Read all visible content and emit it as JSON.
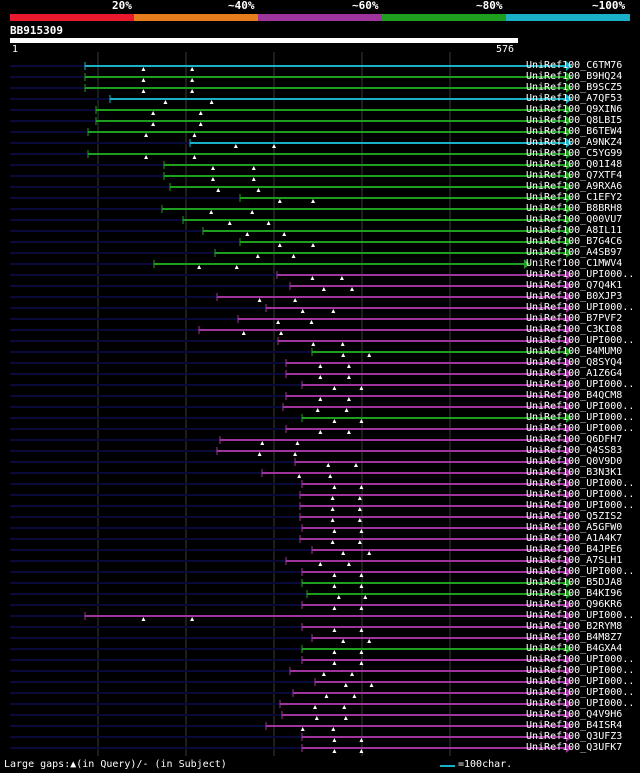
{
  "colors": {
    "bands": [
      "#e8192c",
      "#e87d1e",
      "#a0349e",
      "#1e9e1e",
      "#1ab0c8"
    ],
    "background": "#000000",
    "faint": "#0a0a3a",
    "grid": "#3a3a3a"
  },
  "header": {
    "percent_labels": [
      "20%",
      "~40%",
      "~60%",
      "~80%",
      "~100%"
    ],
    "query_id": "BB915309",
    "scale_start": "1",
    "scale_end": "576"
  },
  "hits": [
    {
      "name": "UniRef100_C6TM76",
      "band": 4,
      "start": 85,
      "end": 572
    },
    {
      "name": "UniRef100_B9HQ24",
      "band": 3,
      "start": 85,
      "end": 572
    },
    {
      "name": "UniRef100_B9SCZ5",
      "band": 3,
      "start": 85,
      "end": 572
    },
    {
      "name": "UniRef100_A7QF53",
      "band": 4,
      "start": 110,
      "end": 572
    },
    {
      "name": "UniRef100_Q9XIN6",
      "band": 3,
      "start": 96,
      "end": 572
    },
    {
      "name": "UniRef100_Q8LBI5",
      "band": 3,
      "start": 96,
      "end": 572
    },
    {
      "name": "UniRef100_B6TEW4",
      "band": 3,
      "start": 88,
      "end": 572
    },
    {
      "name": "UniRef100_A9NKZ4",
      "band": 4,
      "start": 190,
      "end": 572
    },
    {
      "name": "UniRef100_C5YG99",
      "band": 3,
      "start": 88,
      "end": 572
    },
    {
      "name": "UniRef100_Q01I48",
      "band": 3,
      "start": 164,
      "end": 572
    },
    {
      "name": "UniRef100_Q7XTF4",
      "band": 3,
      "start": 164,
      "end": 572
    },
    {
      "name": "UniRef100_A9RXA6",
      "band": 3,
      "start": 170,
      "end": 572
    },
    {
      "name": "UniRef100_C1EFY2",
      "band": 3,
      "start": 240,
      "end": 572
    },
    {
      "name": "UniRef100_B8BRH8",
      "band": 3,
      "start": 162,
      "end": 572
    },
    {
      "name": "UniRef100_Q00VU7",
      "band": 3,
      "start": 183,
      "end": 572
    },
    {
      "name": "UniRef100_A8IL11",
      "band": 3,
      "start": 203,
      "end": 572
    },
    {
      "name": "UniRef100_B7G4C6",
      "band": 3,
      "start": 240,
      "end": 572
    },
    {
      "name": "UniRef100_A4SB97",
      "band": 3,
      "start": 215,
      "end": 572
    },
    {
      "name": "UniRef100_C1MWV4",
      "band": 3,
      "start": 154,
      "end": 530
    },
    {
      "name": "UniRef100_UPI000..",
      "band": 2,
      "start": 277,
      "end": 572
    },
    {
      "name": "UniRef100_Q7Q4K1",
      "band": 2,
      "start": 290,
      "end": 572
    },
    {
      "name": "UniRef100_B0XJP3",
      "band": 2,
      "start": 217,
      "end": 572
    },
    {
      "name": "UniRef100_UPI000..",
      "band": 2,
      "start": 266,
      "end": 572
    },
    {
      "name": "UniRef100_B7PVF2",
      "band": 2,
      "start": 238,
      "end": 572
    },
    {
      "name": "UniRef100_C3KI08",
      "band": 2,
      "start": 199,
      "end": 572
    },
    {
      "name": "UniRef100_UPI000..",
      "band": 2,
      "start": 278,
      "end": 572
    },
    {
      "name": "UniRef100_B4MUM0",
      "band": 3,
      "start": 312,
      "end": 572
    },
    {
      "name": "UniRef100_Q8SYQ4",
      "band": 2,
      "start": 286,
      "end": 572
    },
    {
      "name": "UniRef100_A1Z6G4",
      "band": 2,
      "start": 286,
      "end": 572
    },
    {
      "name": "UniRef100_UPI000..",
      "band": 2,
      "start": 302,
      "end": 572
    },
    {
      "name": "UniRef100_B4QCM8",
      "band": 2,
      "start": 286,
      "end": 572
    },
    {
      "name": "UniRef100_UPI000..",
      "band": 2,
      "start": 283,
      "end": 572
    },
    {
      "name": "UniRef100_UPI000..",
      "band": 3,
      "start": 302,
      "end": 572
    },
    {
      "name": "UniRef100_UPI000..",
      "band": 2,
      "start": 286,
      "end": 572
    },
    {
      "name": "UniRef100_Q6DFH7",
      "band": 2,
      "start": 220,
      "end": 572
    },
    {
      "name": "UniRef100_Q4SS83",
      "band": 2,
      "start": 217,
      "end": 572
    },
    {
      "name": "UniRef100_Q0V9D0",
      "band": 2,
      "start": 295,
      "end": 572
    },
    {
      "name": "UniRef100_B3N3K1",
      "band": 2,
      "start": 262,
      "end": 572
    },
    {
      "name": "UniRef100_UPI000..",
      "band": 2,
      "start": 302,
      "end": 572
    },
    {
      "name": "UniRef100_UPI000..",
      "band": 2,
      "start": 300,
      "end": 572
    },
    {
      "name": "UniRef100_UPI000..",
      "band": 2,
      "start": 300,
      "end": 572
    },
    {
      "name": "UniRef100_Q5ZIS2",
      "band": 2,
      "start": 300,
      "end": 572
    },
    {
      "name": "UniRef100_A5GFW0",
      "band": 2,
      "start": 302,
      "end": 572
    },
    {
      "name": "UniRef100_A1A4K7",
      "band": 2,
      "start": 300,
      "end": 572
    },
    {
      "name": "UniRef100_B4JPE6",
      "band": 2,
      "start": 312,
      "end": 572
    },
    {
      "name": "UniRef100_A7SLH1",
      "band": 2,
      "start": 286,
      "end": 572
    },
    {
      "name": "UniRef100_UPI000..",
      "band": 2,
      "start": 302,
      "end": 572
    },
    {
      "name": "UniRef100_B5DJA8",
      "band": 3,
      "start": 302,
      "end": 572
    },
    {
      "name": "UniRef100_B4KI96",
      "band": 3,
      "start": 307,
      "end": 572
    },
    {
      "name": "UniRef100_Q96KR6",
      "band": 2,
      "start": 302,
      "end": 572
    },
    {
      "name": "UniRef100_UPI000..",
      "band": 2,
      "start": 85,
      "end": 572
    },
    {
      "name": "UniRef100_B2RYM8",
      "band": 2,
      "start": 302,
      "end": 572
    },
    {
      "name": "UniRef100_B4M8Z7",
      "band": 2,
      "start": 312,
      "end": 572
    },
    {
      "name": "UniRef100_B4GXA4",
      "band": 3,
      "start": 302,
      "end": 572
    },
    {
      "name": "UniRef100_UPI000..",
      "band": 2,
      "start": 302,
      "end": 572
    },
    {
      "name": "UniRef100_UPI000..",
      "band": 2,
      "start": 290,
      "end": 572
    },
    {
      "name": "UniRef100_UPI000..",
      "band": 2,
      "start": 315,
      "end": 572
    },
    {
      "name": "UniRef100_UPI000..",
      "band": 2,
      "start": 293,
      "end": 572
    },
    {
      "name": "UniRef100_UPI000..",
      "band": 2,
      "start": 280,
      "end": 572
    },
    {
      "name": "UniRef100_Q4V9H6",
      "band": 2,
      "start": 282,
      "end": 572
    },
    {
      "name": "UniRef100_B4ISR4",
      "band": 2,
      "start": 266,
      "end": 572
    },
    {
      "name": "UniRef100_Q3UFZ3",
      "band": 2,
      "start": 302,
      "end": 572
    },
    {
      "name": "UniRef100_Q3UFK7",
      "band": 2,
      "start": 302,
      "end": 572
    }
  ],
  "legend": {
    "gaps_text": "Large gaps:▲(in Query)/- (in Subject)",
    "scale_text": "=100char."
  }
}
